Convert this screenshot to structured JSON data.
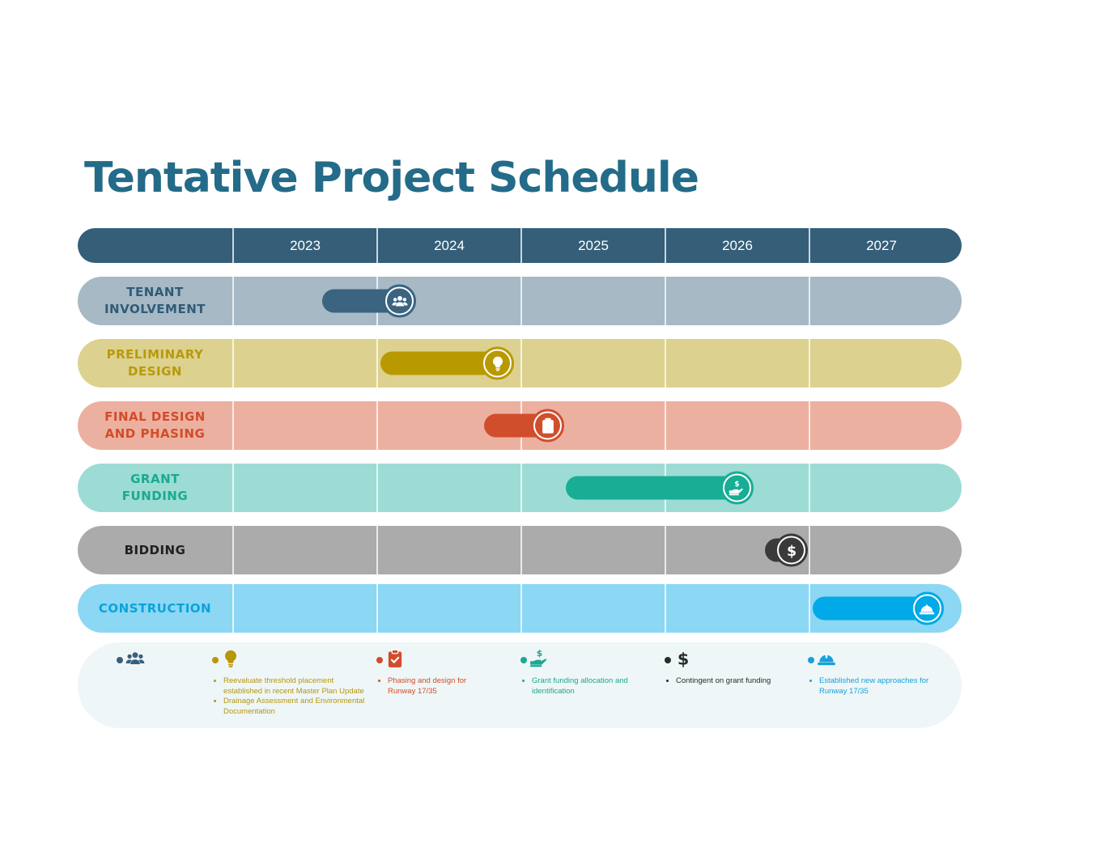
{
  "title": "Tentative Project Schedule",
  "colors": {
    "title": "#236b88",
    "header": "#355e78",
    "header_dark": "#2e566e"
  },
  "timeline": {
    "years": [
      "2023",
      "2024",
      "2025",
      "2026",
      "2027"
    ]
  },
  "rows": [
    {
      "label": "TENANT\nINVOLVEMENT",
      "band_color": "#a7b9c4",
      "label_color": "#2f5b79",
      "bar_color": "#3a6480",
      "icon": "people-icon",
      "start": 2023.62,
      "end": 2024.27
    },
    {
      "label": "PRELIMINARY\nDESIGN",
      "band_color": "#ddd18f",
      "label_color": "#b89a0a",
      "bar_color": "#b89a00",
      "icon": "lightbulb-icon",
      "start": 2024.02,
      "end": 2024.95
    },
    {
      "label": "FINAL DESIGN\nAND PHASING",
      "band_color": "#ecb0a0",
      "label_color": "#d24c2a",
      "bar_color": "#d04e2c",
      "icon": "clipboard-check-icon",
      "start": 2024.74,
      "end": 2025.3
    },
    {
      "label": "GRANT\nFUNDING",
      "band_color": "#9cdcd4",
      "label_color": "#1aa98f",
      "bar_color": "#18ad95",
      "icon": "hand-dollar-icon",
      "start": 2025.31,
      "end": 2026.61
    },
    {
      "label": "BIDDING",
      "band_color": "#ababab",
      "label_color": "#1f1f1f",
      "bar_color": "#3a3a3a",
      "icon": "dollar-icon",
      "start": 2026.69,
      "end": 2026.99
    },
    {
      "label": "CONSTRUCTION",
      "band_color": "#8cd7f3",
      "label_color": "#0aa3dc",
      "bar_color": "#00a9e8",
      "icon": "hard-hat-icon",
      "start": 2027.02,
      "end": 2027.93
    }
  ],
  "notes": [
    {
      "icon": "people-icon",
      "color": "#3a5f7a",
      "items": []
    },
    {
      "icon": "lightbulb-icon",
      "color": "#b8960a",
      "items": [
        "Reevaluate threshold placement established in recent Master Plan Update",
        "Drainage Assessment and Environmental Documentation"
      ]
    },
    {
      "icon": "clipboard-check-icon",
      "color": "#d24c2a",
      "items": [
        "Phasing and design for Runway 17/35"
      ]
    },
    {
      "icon": "hand-dollar-icon",
      "color": "#1aa98f",
      "items": [
        "Grant funding allocation and identification"
      ]
    },
    {
      "icon": "dollar-icon",
      "color": "#2a2a2a",
      "items": [
        "Contingent on grant funding"
      ]
    },
    {
      "icon": "hard-hat-icon",
      "color": "#14a2dc",
      "items": [
        "Established new approaches for Runway 17/35"
      ]
    }
  ]
}
